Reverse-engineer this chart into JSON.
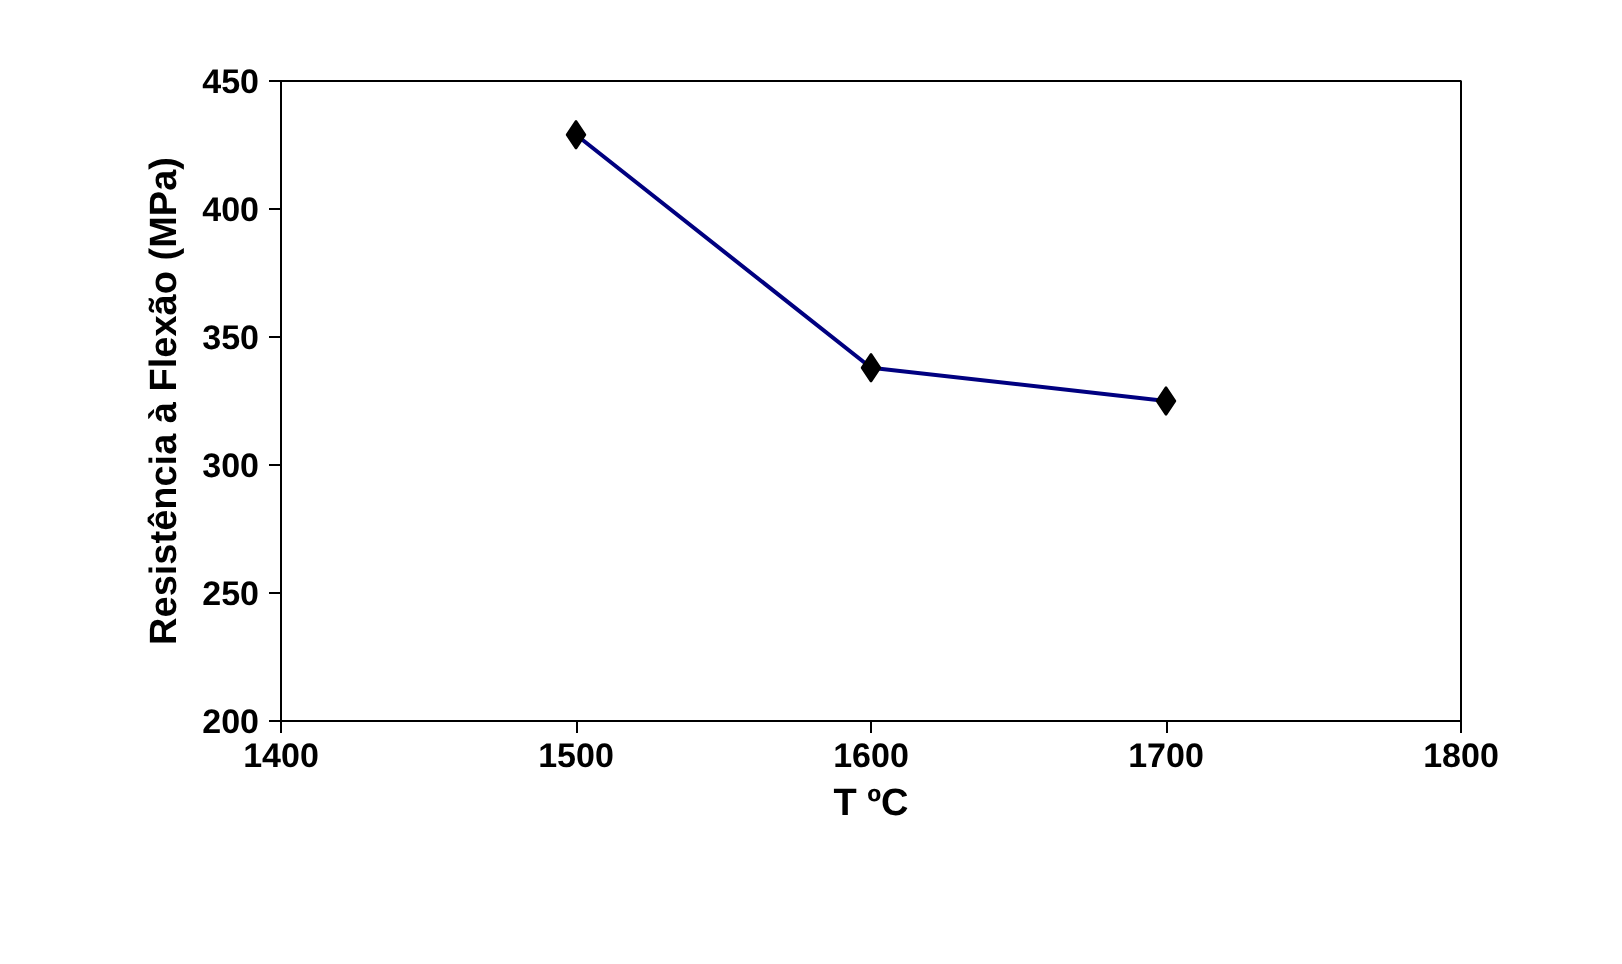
{
  "chart_data": {
    "type": "line",
    "xlabel": "T ºC",
    "ylabel": "Resistência à Flexão (MPa)",
    "x": [
      1500,
      1600,
      1700
    ],
    "series": [
      {
        "color": "#000080",
        "values": [
          429,
          338,
          325
        ]
      }
    ],
    "xlim": [
      1400,
      1800
    ],
    "xticks": [
      1400,
      1500,
      1600,
      1700,
      1800
    ],
    "ylim": [
      200,
      450
    ],
    "yticks": [
      200,
      250,
      300,
      350,
      400,
      450
    ],
    "marker": "diamond",
    "grid": false
  }
}
